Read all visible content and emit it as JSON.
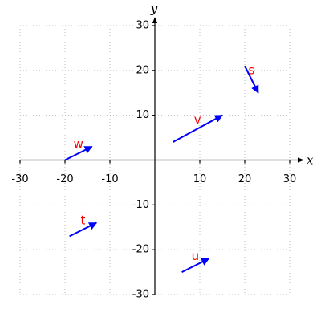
{
  "chart_data": {
    "type": "vector",
    "x_label": "x",
    "y_label": "y",
    "xlim": [
      -30,
      30
    ],
    "ylim": [
      -30,
      30
    ],
    "xticks": [
      -30,
      -20,
      -10,
      10,
      20,
      30
    ],
    "yticks": [
      -30,
      -20,
      -10,
      10,
      20,
      30
    ],
    "grid": true,
    "color": "blue",
    "label_color": "red",
    "vectors": [
      {
        "name": "w",
        "x": -20,
        "y": 0,
        "dx": 6,
        "dy": 3
      },
      {
        "name": "v",
        "x": 4,
        "y": 4,
        "dx": 11,
        "dy": 6
      },
      {
        "name": "s",
        "x": 20,
        "y": 21,
        "dx": 3,
        "dy": -6
      },
      {
        "name": "t",
        "x": -19,
        "y": -17,
        "dx": 6,
        "dy": 3
      },
      {
        "name": "u",
        "x": 6,
        "y": -25,
        "dx": 6,
        "dy": 3
      }
    ]
  }
}
